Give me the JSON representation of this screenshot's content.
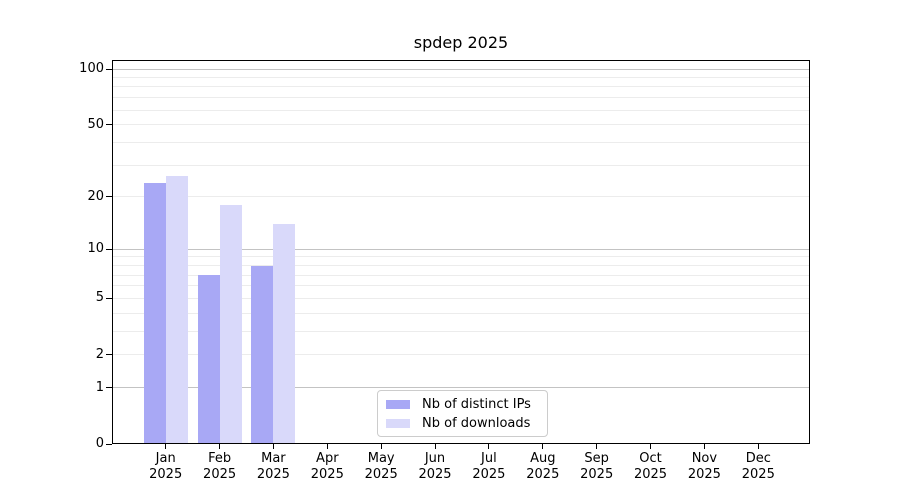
{
  "chart_data": {
    "type": "bar",
    "title": "spdep 2025",
    "categories": [
      "Jan",
      "Feb",
      "Mar",
      "Apr",
      "May",
      "Jun",
      "Jul",
      "Aug",
      "Sep",
      "Oct",
      "Nov",
      "Dec"
    ],
    "category_year": "2025",
    "series": [
      {
        "name": "Nb of distinct IPs",
        "color": "#a8a8f5",
        "values": [
          24,
          7,
          8,
          0,
          0,
          0,
          0,
          0,
          0,
          0,
          0,
          0
        ]
      },
      {
        "name": "Nb of downloads",
        "color": "#d9d9fa",
        "values": [
          26,
          18,
          14,
          0,
          0,
          0,
          0,
          0,
          0,
          0,
          0,
          0
        ]
      }
    ],
    "yscale": "log1p",
    "ylim": [
      0,
      100
    ],
    "ytick_labels": [
      0,
      1,
      2,
      5,
      10,
      20,
      50,
      100
    ],
    "major_gridlines": [
      1,
      10,
      100
    ],
    "minor_gridlines": [
      2,
      3,
      4,
      5,
      6,
      7,
      8,
      9,
      20,
      30,
      40,
      50,
      60,
      70,
      80,
      90
    ],
    "legend_position": "bottom-center",
    "grid": true,
    "colors": {
      "background": "#ffffff",
      "axis_frame": "#000000",
      "major_grid": "#c3c3c3",
      "minor_grid": "#ececec",
      "text": "#000000",
      "legend_border": "#cccccc"
    }
  }
}
